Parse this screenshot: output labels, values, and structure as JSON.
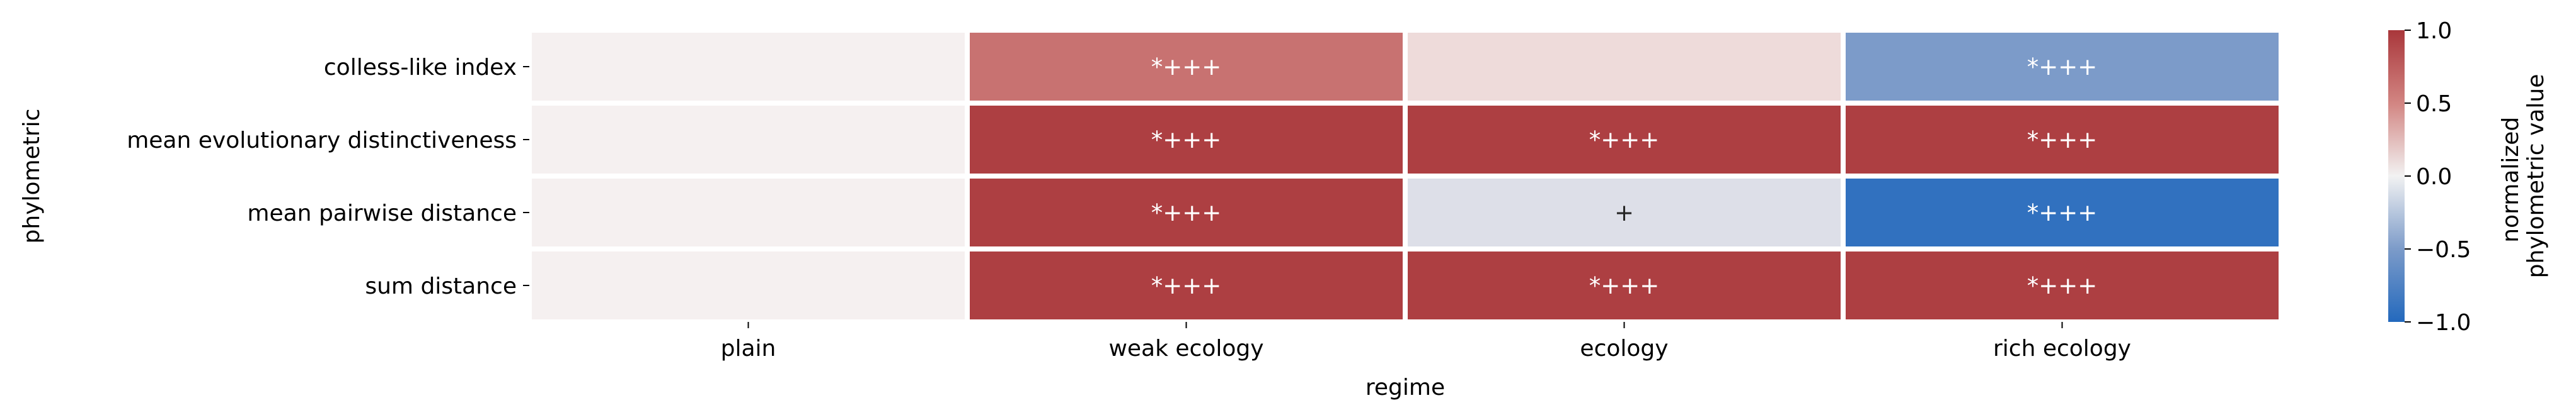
{
  "chart_data": {
    "type": "heatmap",
    "xlabel": "regime",
    "ylabel": "phylometric",
    "x_categories": [
      "plain",
      "weak ecology",
      "ecology",
      "rich ecology"
    ],
    "y_categories": [
      "colless-like index",
      "mean evolutionary distinctiveness",
      "mean pairwise distance",
      "sum distance"
    ],
    "values": [
      [
        0.0,
        0.62,
        0.1,
        -0.5
      ],
      [
        0.0,
        0.95,
        0.95,
        0.95
      ],
      [
        0.0,
        0.95,
        -0.1,
        -0.92
      ],
      [
        0.0,
        0.95,
        0.95,
        0.95
      ]
    ],
    "annotations": [
      [
        "",
        "*+++",
        "",
        "*+++"
      ],
      [
        "",
        "*+++",
        "*+++",
        "*+++"
      ],
      [
        "",
        "*+++",
        "+",
        "*+++"
      ],
      [
        "",
        "*+++",
        "*+++",
        "*+++"
      ]
    ],
    "colormap": "vlag",
    "colorbar": {
      "label_lines": [
        "normalized",
        "phylometric value"
      ],
      "vmin": -1.0,
      "vmax": 1.0,
      "ticks": [
        1.0,
        0.5,
        0.0,
        -0.5,
        -1.0
      ],
      "tick_labels": [
        "1.0",
        "0.5",
        "0.0",
        "−0.5",
        "−1.0"
      ]
    }
  }
}
